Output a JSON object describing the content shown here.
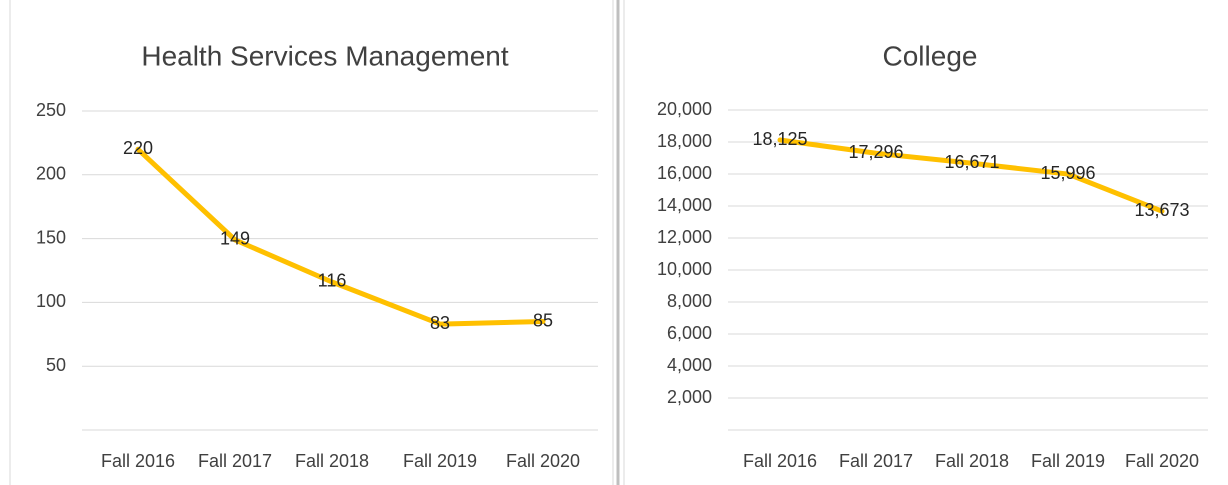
{
  "chart_data": [
    {
      "type": "line",
      "title": "Health Services Management",
      "categories": [
        "Fall 2016",
        "Fall 2017",
        "Fall 2018",
        "Fall 2019",
        "Fall 2020"
      ],
      "series": [
        {
          "name": "Health Services Management",
          "color": "#ffc000",
          "values": [
            220,
            149,
            116,
            83,
            85
          ]
        }
      ],
      "ylim": [
        0,
        250
      ],
      "yticks": [
        50,
        100,
        150,
        200,
        250
      ],
      "grid": true
    },
    {
      "type": "line",
      "title": "College",
      "categories": [
        "Fall 2016",
        "Fall 2017",
        "Fall 2018",
        "Fall 2019",
        "Fall 2020"
      ],
      "series": [
        {
          "name": "College",
          "color": "#ffc000",
          "values": [
            18125,
            17296,
            16671,
            15996,
            13673
          ],
          "value_labels": [
            "18,125",
            "17,296",
            "16,671",
            "15,996",
            "13,673"
          ]
        }
      ],
      "ylim": [
        0,
        20000
      ],
      "yticks": [
        {
          "value": 2000,
          "label": "2,000"
        },
        {
          "value": 4000,
          "label": "4,000"
        },
        {
          "value": 6000,
          "label": "6,000"
        },
        {
          "value": 8000,
          "label": "8,000"
        },
        {
          "value": 10000,
          "label": "10,000"
        },
        {
          "value": 12000,
          "label": "12,000"
        },
        {
          "value": 14000,
          "label": "14,000"
        },
        {
          "value": 16000,
          "label": "16,000"
        },
        {
          "value": 18000,
          "label": "18,000"
        },
        {
          "value": 20000,
          "label": "20,000"
        }
      ],
      "grid": true
    }
  ]
}
